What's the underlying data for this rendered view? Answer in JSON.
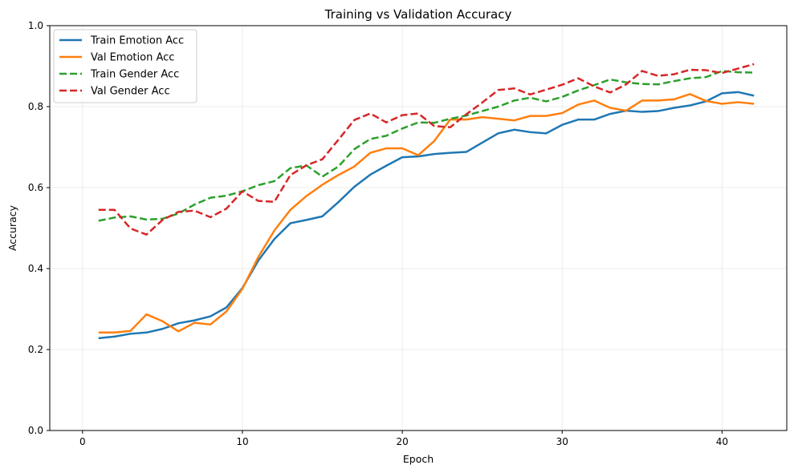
{
  "chart_data": {
    "type": "line",
    "title": "Training vs Validation Accuracy",
    "xlabel": "Epoch",
    "ylabel": "Accuracy",
    "xlim": [
      -2.05,
      44.05
    ],
    "ylim": [
      0.0,
      1.0
    ],
    "xticks": [
      0,
      10,
      20,
      30,
      40
    ],
    "yticks": [
      0.0,
      0.2,
      0.4,
      0.6,
      0.8,
      1.0
    ],
    "ytick_labels": [
      "0.0",
      "0.2",
      "0.4",
      "0.6",
      "0.8",
      "1.0"
    ],
    "grid": true,
    "legend_position": "top-left",
    "x": [
      1,
      2,
      3,
      4,
      5,
      6,
      7,
      8,
      9,
      10,
      11,
      12,
      13,
      14,
      15,
      16,
      17,
      18,
      19,
      20,
      21,
      22,
      23,
      24,
      25,
      26,
      27,
      28,
      29,
      30,
      31,
      32,
      33,
      34,
      35,
      36,
      37,
      38,
      39,
      40,
      41,
      42
    ],
    "series": [
      {
        "name": "Train Emotion Acc",
        "color": "#1f77b4",
        "style": "solid",
        "values": [
          0.228,
          0.232,
          0.239,
          0.242,
          0.251,
          0.265,
          0.272,
          0.282,
          0.304,
          0.352,
          0.42,
          0.473,
          0.512,
          0.52,
          0.529,
          0.564,
          0.602,
          0.632,
          0.654,
          0.675,
          0.677,
          0.683,
          0.686,
          0.688,
          0.711,
          0.734,
          0.743,
          0.737,
          0.734,
          0.755,
          0.768,
          0.768,
          0.782,
          0.79,
          0.787,
          0.789,
          0.797,
          0.803,
          0.813,
          0.833,
          0.836,
          0.827
        ]
      },
      {
        "name": "Val  Emotion Acc",
        "color": "#ff7f0e",
        "style": "solid",
        "values": [
          0.242,
          0.242,
          0.246,
          0.287,
          0.27,
          0.245,
          0.266,
          0.262,
          0.294,
          0.35,
          0.429,
          0.494,
          0.545,
          0.579,
          0.607,
          0.631,
          0.652,
          0.686,
          0.697,
          0.697,
          0.68,
          0.715,
          0.768,
          0.768,
          0.774,
          0.77,
          0.766,
          0.777,
          0.777,
          0.784,
          0.805,
          0.815,
          0.797,
          0.79,
          0.815,
          0.815,
          0.818,
          0.831,
          0.814,
          0.807,
          0.811,
          0.807
        ]
      },
      {
        "name": "Train Gender Acc",
        "color": "#2ca02c",
        "style": "dashed",
        "values": [
          0.518,
          0.526,
          0.529,
          0.521,
          0.523,
          0.536,
          0.558,
          0.575,
          0.58,
          0.591,
          0.606,
          0.616,
          0.648,
          0.655,
          0.627,
          0.652,
          0.695,
          0.72,
          0.728,
          0.746,
          0.761,
          0.76,
          0.77,
          0.778,
          0.789,
          0.8,
          0.815,
          0.822,
          0.813,
          0.824,
          0.84,
          0.853,
          0.867,
          0.86,
          0.856,
          0.855,
          0.863,
          0.87,
          0.873,
          0.888,
          0.885,
          0.884
        ]
      },
      {
        "name": "Val  Gender Acc",
        "color": "#d62728",
        "style": "dashed",
        "values": [
          0.545,
          0.545,
          0.499,
          0.484,
          0.52,
          0.54,
          0.543,
          0.527,
          0.548,
          0.591,
          0.567,
          0.565,
          0.631,
          0.655,
          0.67,
          0.718,
          0.767,
          0.783,
          0.761,
          0.779,
          0.783,
          0.752,
          0.749,
          0.781,
          0.81,
          0.841,
          0.845,
          0.83,
          0.842,
          0.854,
          0.87,
          0.85,
          0.835,
          0.855,
          0.888,
          0.876,
          0.88,
          0.891,
          0.89,
          0.883,
          0.894,
          0.905
        ]
      }
    ]
  }
}
